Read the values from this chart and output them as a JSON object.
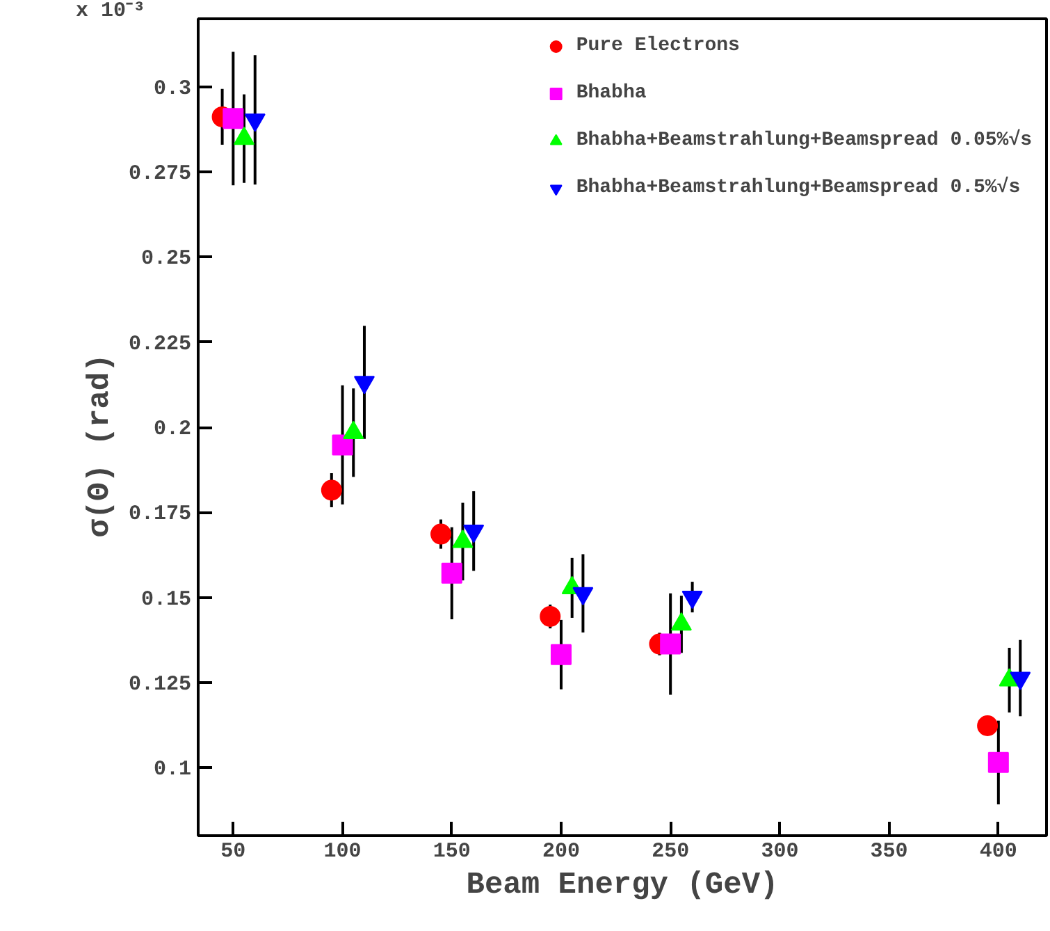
{
  "chart_data": {
    "type": "scatter",
    "xlabel": "Beam Energy (GeV)",
    "ylabel": "σ(Θ)   (rad)",
    "annotations": [
      "x 10⁻³"
    ],
    "xlim": [
      34,
      422
    ],
    "ylim": [
      0.08,
      0.32
    ],
    "xticks": [
      50,
      100,
      150,
      200,
      250,
      300,
      350,
      400
    ],
    "yticks": [
      0.1,
      0.125,
      0.15,
      0.175,
      0.2,
      0.225,
      0.25,
      0.275,
      0.3
    ],
    "grid": false,
    "legend": "top right",
    "series": [
      {
        "name": "Pure Electrons",
        "color": "#ff0000",
        "marker": "circle",
        "x": [
          45,
          95,
          145,
          195,
          245,
          395
        ],
        "values": [
          0.2912,
          0.1815,
          0.1686,
          0.1444,
          0.1363,
          0.1123
        ],
        "errors": [
          0.0082,
          0.005,
          0.0043,
          0.0035,
          0.0033,
          null
        ]
      },
      {
        "name": "Bhabha",
        "color": "#ff00ff",
        "marker": "square",
        "x": [
          50,
          100,
          150,
          200,
          250,
          400
        ],
        "values": [
          0.2907,
          0.1948,
          0.1571,
          0.1332,
          0.1363,
          0.1015
        ],
        "errors": [
          0.0196,
          0.0175,
          0.0135,
          0.0102,
          0.0149,
          0.0123
        ]
      },
      {
        "name": "Bhabha+Beamstrahlung+Beamspread 0.05%√s",
        "color": "#00ff00",
        "marker": "triangle",
        "x": [
          55,
          105,
          155,
          205,
          255,
          405
        ],
        "values": [
          0.2848,
          0.1984,
          0.1664,
          0.1528,
          0.1421,
          0.1257
        ],
        "errors": [
          0.013,
          0.013,
          0.0114,
          0.0088,
          0.0084,
          0.0095
        ]
      },
      {
        "name": "Bhabha+Beamstrahlung+Beamspread 0.5%√s",
        "color": "#0000ff",
        "x": [
          60,
          110,
          160,
          210,
          260,
          410
        ],
        "values": [
          0.2903,
          0.2132,
          0.1695,
          0.1512,
          0.1501,
          0.1263
        ],
        "errors": [
          0.019,
          0.0166,
          0.0117,
          0.0115,
          0.0045,
          0.0112
        ]
      }
    ]
  }
}
